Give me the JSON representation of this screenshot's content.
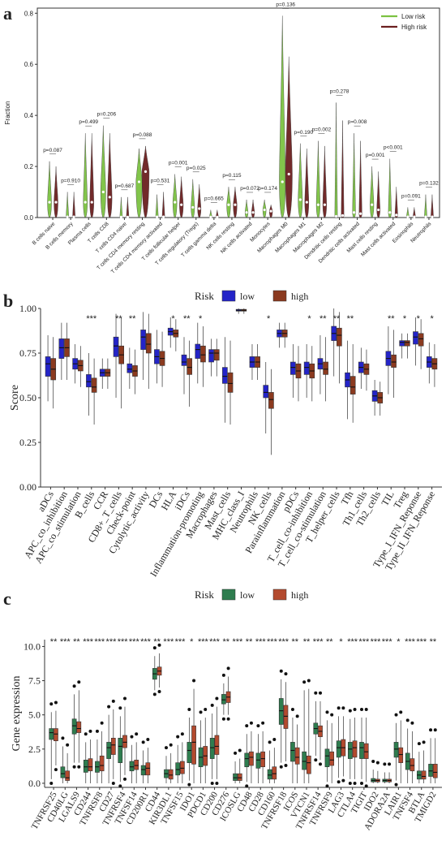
{
  "panels": {
    "a": {
      "letter": "a"
    },
    "b": {
      "letter": "b"
    },
    "c": {
      "letter": "c"
    }
  },
  "chart_data": [
    {
      "id": "a",
      "type": "violin",
      "ylabel": "Fraction",
      "ylim": [
        0,
        0.82
      ],
      "yticks": [
        0.0,
        0.2,
        0.4,
        0.6,
        0.8
      ],
      "legend": {
        "placement": "top-right",
        "entries": [
          {
            "name": "Low risk",
            "color": "#7cc242"
          },
          {
            "name": "High risk",
            "color": "#6b1f1f"
          }
        ]
      },
      "categories": [
        "B cells naive",
        "B cells memory",
        "Plasma cells",
        "T cells CD8",
        "T cells CD4 naive",
        "T cells CD4 memory resting",
        "T cells CD4 memory activated",
        "T cells follicular helper",
        "T cells regulatory (Tregs)",
        "T cells gamma delta",
        "NK cells resting",
        "NK cells activated",
        "Monocytes",
        "Macrophages M0",
        "Macrophages M1",
        "Macrophages M2",
        "Dendritic cells resting",
        "Dendritic cells activated",
        "Mast cells resting",
        "Mast cells activated",
        "Eosinophils",
        "Neutrophils"
      ],
      "pvalues": [
        "p=0.087",
        "p=0.910",
        "p=0.499",
        "p=0.206",
        "p=0.687",
        "p=0.088",
        "p=0.531",
        "p=0.001",
        "p=0.025",
        "p=0.665",
        "p=0.115",
        "p=0.072",
        "p=0.174",
        "p=0.136",
        "p=0.190",
        "p=0.002",
        "p=0.278",
        "p=0.008",
        "p=0.001",
        "p<0.001",
        "p=0.091",
        "p=0.132"
      ],
      "series": [
        {
          "name": "Low risk",
          "max": [
            0.22,
            0.1,
            0.33,
            0.36,
            0.08,
            0.27,
            0.09,
            0.17,
            0.15,
            0.03,
            0.12,
            0.07,
            0.07,
            0.79,
            0.29,
            0.3,
            0.45,
            0.33,
            0.2,
            0.23,
            0.04,
            0.09
          ],
          "median": [
            0.06,
            0.003,
            0.06,
            0.1,
            0.002,
            0.14,
            0.003,
            0.06,
            0.04,
            0.002,
            0.05,
            0.02,
            0.03,
            0.14,
            0.07,
            0.05,
            0.005,
            0.02,
            0.05,
            0.02,
            0.003,
            0.003
          ]
        },
        {
          "name": "High risk",
          "max": [
            0.2,
            0.1,
            0.33,
            0.33,
            0.08,
            0.28,
            0.1,
            0.16,
            0.13,
            0.03,
            0.12,
            0.07,
            0.05,
            0.63,
            0.27,
            0.28,
            0.38,
            0.3,
            0.18,
            0.12,
            0.04,
            0.09
          ],
          "median": [
            0.06,
            0.003,
            0.06,
            0.08,
            0.002,
            0.18,
            0.003,
            0.05,
            0.035,
            0.002,
            0.05,
            0.02,
            0.025,
            0.17,
            0.06,
            0.05,
            0.008,
            0.015,
            0.03,
            0.01,
            0.003,
            0.003
          ]
        }
      ]
    },
    {
      "id": "b",
      "type": "box",
      "ylabel": "Score",
      "ylim": [
        0,
        1.0
      ],
      "yticks": [
        0.0,
        0.25,
        0.5,
        0.75,
        1.0
      ],
      "legend": {
        "placement": "top",
        "title": "Risk",
        "entries": [
          {
            "name": "low",
            "color": "#2424c8"
          },
          {
            "name": "high",
            "color": "#8b3a1f"
          }
        ]
      },
      "categories": [
        "aDCs",
        "APC_co_inhibition",
        "APC_co_stimulation",
        "B_cells",
        "CCR",
        "CD8+_T_cells",
        "Check-point",
        "Cytolytic_activity",
        "DCs",
        "HLA",
        "iDCs",
        "Inflammation-promoting",
        "Macrophages",
        "Mast_cells",
        "MHC_class_I",
        "Neutrophils",
        "NK_cells",
        "Parainflammation",
        "pDCs",
        "T_cell_co-inhibition",
        "T_cell_co-stimulation",
        "T_helper_cells",
        "Tfh",
        "Th1_cells",
        "Th2_cells",
        "TIL",
        "Treg",
        "Type_I_IFN_Reponse",
        "Type_II_IFN_Reponse"
      ],
      "significance": [
        "",
        "",
        "",
        "***",
        "",
        "**",
        "**",
        "",
        "",
        "*",
        "**",
        "*",
        "",
        "",
        "",
        "",
        "*",
        "",
        "",
        "*",
        "**",
        "**",
        "**",
        "",
        "",
        "**",
        "*",
        "*",
        "*"
      ],
      "series": [
        {
          "name": "low",
          "q1": [
            0.62,
            0.72,
            0.66,
            0.56,
            0.62,
            0.73,
            0.64,
            0.77,
            0.69,
            0.85,
            0.68,
            0.72,
            0.7,
            0.58,
            0.985,
            0.67,
            0.5,
            0.84,
            0.63,
            0.63,
            0.66,
            0.82,
            0.56,
            0.64,
            0.48,
            0.68,
            0.79,
            0.8,
            0.67
          ],
          "median": [
            0.69,
            0.78,
            0.69,
            0.59,
            0.64,
            0.79,
            0.66,
            0.84,
            0.73,
            0.87,
            0.7,
            0.77,
            0.75,
            0.62,
            0.99,
            0.7,
            0.53,
            0.86,
            0.67,
            0.67,
            0.69,
            0.86,
            0.6,
            0.67,
            0.51,
            0.72,
            0.81,
            0.84,
            0.7
          ],
          "q3": [
            0.73,
            0.83,
            0.72,
            0.63,
            0.66,
            0.84,
            0.69,
            0.88,
            0.77,
            0.89,
            0.74,
            0.8,
            0.77,
            0.67,
            0.995,
            0.73,
            0.57,
            0.88,
            0.7,
            0.7,
            0.72,
            0.9,
            0.64,
            0.7,
            0.54,
            0.76,
            0.82,
            0.87,
            0.73
          ],
          "min": [
            0.48,
            0.6,
            0.58,
            0.4,
            0.55,
            0.5,
            0.55,
            0.6,
            0.58,
            0.78,
            0.52,
            0.58,
            0.62,
            0.36,
            0.97,
            0.6,
            0.3,
            0.78,
            0.5,
            0.5,
            0.52,
            0.62,
            0.38,
            0.55,
            0.4,
            0.52,
            0.72,
            0.68,
            0.58
          ],
          "max": [
            0.85,
            0.92,
            0.8,
            0.75,
            0.72,
            0.97,
            0.78,
            0.98,
            0.88,
            0.95,
            0.84,
            0.92,
            0.83,
            0.84,
            1.0,
            0.8,
            0.7,
            0.92,
            0.8,
            0.8,
            0.85,
            1.0,
            0.82,
            0.78,
            0.6,
            0.9,
            0.86,
            0.95,
            0.81
          ]
        },
        {
          "name": "high",
          "q1": [
            0.6,
            0.73,
            0.65,
            0.53,
            0.62,
            0.69,
            0.62,
            0.75,
            0.68,
            0.84,
            0.63,
            0.7,
            0.71,
            0.53,
            0.985,
            0.67,
            0.44,
            0.84,
            0.61,
            0.61,
            0.63,
            0.79,
            0.52,
            0.63,
            0.47,
            0.67,
            0.79,
            0.79,
            0.66
          ],
          "median": [
            0.66,
            0.78,
            0.68,
            0.56,
            0.64,
            0.74,
            0.65,
            0.8,
            0.72,
            0.86,
            0.67,
            0.74,
            0.75,
            0.58,
            0.99,
            0.7,
            0.49,
            0.86,
            0.65,
            0.65,
            0.66,
            0.85,
            0.56,
            0.66,
            0.5,
            0.7,
            0.81,
            0.83,
            0.69
          ],
          "q3": [
            0.72,
            0.83,
            0.71,
            0.61,
            0.66,
            0.79,
            0.68,
            0.86,
            0.76,
            0.88,
            0.72,
            0.79,
            0.77,
            0.64,
            0.995,
            0.73,
            0.53,
            0.88,
            0.69,
            0.69,
            0.7,
            0.89,
            0.62,
            0.69,
            0.53,
            0.74,
            0.82,
            0.86,
            0.72
          ],
          "min": [
            0.44,
            0.6,
            0.56,
            0.35,
            0.55,
            0.44,
            0.52,
            0.55,
            0.56,
            0.76,
            0.45,
            0.56,
            0.62,
            0.35,
            0.97,
            0.6,
            0.18,
            0.78,
            0.48,
            0.48,
            0.48,
            0.58,
            0.36,
            0.54,
            0.4,
            0.5,
            0.72,
            0.66,
            0.56
          ],
          "max": [
            0.84,
            0.92,
            0.79,
            0.72,
            0.72,
            0.95,
            0.77,
            0.97,
            0.87,
            0.94,
            0.82,
            0.9,
            0.83,
            0.82,
            1.0,
            0.8,
            0.66,
            0.92,
            0.79,
            0.79,
            0.84,
            0.98,
            0.8,
            0.77,
            0.59,
            0.88,
            0.86,
            0.94,
            0.8
          ]
        }
      ]
    },
    {
      "id": "c",
      "type": "box",
      "ylabel": "Gene expression",
      "ylim": [
        -0.3,
        10.5
      ],
      "yticks": [
        0.0,
        2.5,
        5.0,
        7.5,
        10.0
      ],
      "legend": {
        "placement": "top",
        "title": "Risk",
        "entries": [
          {
            "name": "low",
            "color": "#2e7d4f"
          },
          {
            "name": "high",
            "color": "#b34a2e"
          }
        ]
      },
      "categories": [
        "TNFRSF25",
        "CD40LG",
        "LGALS9",
        "CD244",
        "TNFRSF8",
        "CD27",
        "TNFRSF4",
        "TNFSF14",
        "CD200R1",
        "CD44",
        "KIR3DL1",
        "TNFSF15",
        "IDO1",
        "PDCD1",
        "CD200",
        "CD276",
        "ICOSLG",
        "CD48",
        "CD28",
        "CD160",
        "TNFRSF18",
        "ICOS",
        "VTCN1",
        "TNFRSF14",
        "TNFRSF9",
        "LAG3",
        "CTLA4",
        "TIGIT",
        "IDO2",
        "ADORA2A",
        "LAIR1",
        "TNFSF4",
        "BTLA",
        "TMIGD2"
      ],
      "significance": [
        "**",
        "***",
        "**",
        "***",
        "***",
        "***",
        "***",
        "***",
        "***",
        "**",
        "***",
        "***",
        "*",
        "***",
        "***",
        "**",
        "***",
        "**",
        "***",
        "***",
        "***",
        "**",
        "**",
        "***",
        "**",
        "*",
        "***",
        "***",
        "***",
        "***",
        "*",
        "***",
        "***",
        "**"
      ],
      "series": [
        {
          "name": "low",
          "q1": [
            3.2,
            0.4,
            3.6,
            0.8,
            0.8,
            1.8,
            1.5,
            0.9,
            0.6,
            7.6,
            0.4,
            0.6,
            1.5,
            1.2,
            1.8,
            5.8,
            0.2,
            1.2,
            1.1,
            0.3,
            4.3,
            1.6,
            1.0,
            3.6,
            1.2,
            1.9,
            1.8,
            1.8,
            0.1,
            0.1,
            1.9,
            1.0,
            0.3,
            0.5
          ],
          "median": [
            3.7,
            0.7,
            4.2,
            1.2,
            1.2,
            2.6,
            2.7,
            1.2,
            1.0,
            8.0,
            0.7,
            1.0,
            2.4,
            1.9,
            2.6,
            6.1,
            0.4,
            1.8,
            1.7,
            0.6,
            5.3,
            2.4,
            1.6,
            4.0,
            2.0,
            2.6,
            2.5,
            2.6,
            0.2,
            0.2,
            2.5,
            1.6,
            0.6,
            0.9
          ],
          "q3": [
            4.0,
            1.2,
            4.7,
            1.7,
            1.6,
            3.0,
            3.3,
            1.6,
            1.3,
            8.4,
            1.0,
            1.5,
            3.0,
            2.6,
            3.3,
            6.5,
            0.7,
            2.2,
            2.2,
            1.0,
            6.2,
            3.0,
            2.3,
            4.4,
            2.5,
            3.1,
            3.0,
            3.0,
            0.35,
            0.3,
            3.0,
            2.2,
            0.9,
            1.4
          ],
          "min": [
            0.3,
            0.0,
            1.5,
            0.0,
            0.0,
            0.0,
            0.1,
            0.0,
            0.0,
            6.8,
            0.0,
            0.0,
            0.2,
            0.0,
            0.3,
            5.0,
            0.0,
            0.1,
            0.0,
            0.0,
            1.5,
            0.0,
            0.0,
            2.0,
            0.1,
            0.4,
            0.3,
            0.3,
            0.0,
            0.0,
            0.2,
            0.0,
            0.0,
            0.0
          ],
          "max": [
            5.2,
            2.7,
            6.5,
            3.0,
            3.2,
            5.0,
            4.9,
            2.8,
            2.4,
            9.3,
            2.0,
            2.8,
            4.8,
            4.6,
            5.1,
            7.3,
            1.6,
            3.6,
            3.6,
            2.4,
            7.6,
            4.8,
            6.8,
            6.0,
            4.6,
            4.9,
            4.7,
            4.8,
            1.0,
            0.8,
            4.4,
            4.0,
            2.3,
            3.3
          ]
        },
        {
          "name": "high",
          "q1": [
            3.1,
            0.2,
            3.7,
            0.9,
            0.9,
            2.1,
            2.6,
            1.0,
            0.6,
            7.9,
            0.3,
            0.7,
            1.4,
            1.3,
            2.1,
            5.9,
            0.2,
            1.3,
            1.2,
            0.3,
            4.0,
            1.4,
            0.7,
            3.4,
            1.3,
            2.0,
            1.9,
            1.8,
            0.1,
            0.1,
            1.5,
            0.9,
            0.3,
            0.4
          ],
          "median": [
            3.6,
            0.4,
            4.0,
            1.2,
            1.3,
            2.8,
            3.0,
            1.3,
            1.1,
            8.2,
            0.6,
            1.1,
            3.0,
            2.0,
            2.7,
            6.3,
            0.4,
            1.9,
            1.8,
            0.7,
            4.9,
            1.9,
            1.5,
            3.8,
            1.7,
            2.6,
            2.6,
            2.3,
            0.2,
            0.2,
            2.1,
            1.3,
            0.5,
            0.8
          ],
          "q3": [
            4.0,
            0.9,
            4.5,
            1.8,
            2.0,
            3.3,
            3.5,
            1.7,
            1.5,
            8.5,
            1.0,
            1.6,
            4.2,
            2.7,
            3.5,
            6.7,
            0.7,
            2.3,
            2.3,
            1.2,
            5.7,
            2.6,
            2.0,
            4.2,
            2.3,
            3.2,
            3.1,
            2.9,
            0.3,
            0.3,
            2.6,
            1.8,
            0.9,
            1.4
          ],
          "min": [
            1.3,
            0.0,
            1.5,
            0.0,
            0.0,
            0.3,
            0.6,
            0.0,
            0.0,
            7.0,
            0.0,
            0.0,
            0.0,
            0.0,
            0.3,
            5.0,
            0.0,
            0.0,
            0.0,
            0.0,
            1.6,
            0.0,
            0.0,
            1.7,
            0.0,
            0.5,
            0.3,
            0.1,
            0.0,
            0.0,
            0.0,
            0.0,
            0.0,
            0.0
          ],
          "max": [
            5.3,
            2.2,
            6.8,
            3.2,
            3.8,
            5.4,
            5.6,
            3.0,
            2.6,
            9.5,
            2.2,
            3.0,
            6.9,
            4.8,
            5.6,
            7.8,
            1.8,
            3.8,
            3.8,
            2.6,
            7.4,
            4.3,
            6.9,
            6.0,
            4.4,
            4.9,
            4.8,
            4.8,
            0.9,
            0.8,
            4.6,
            3.8,
            2.4,
            3.3
          ]
        }
      ]
    }
  ]
}
